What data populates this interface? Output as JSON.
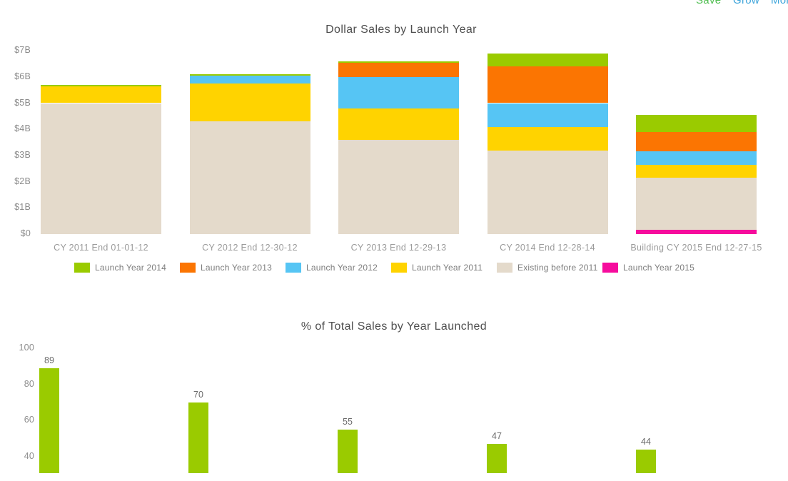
{
  "header": {
    "links": [
      {
        "label": "Save",
        "color": "#4fbe50"
      },
      {
        "label": "Grow",
        "color": "#3fa5db"
      },
      {
        "label": "More",
        "color": "#3fa5db"
      }
    ]
  },
  "colors": {
    "green_2014": "#9acb00",
    "orange_2013": "#fb7502",
    "blue_2012": "#56c5f4",
    "yellow_2011": "#ffd300",
    "tan_existing": "#e4dacb",
    "magenta_2015": "#f60c9d"
  },
  "chart_data": [
    {
      "type": "bar",
      "subtype": "stacked",
      "title": "Dollar Sales by Launch Year",
      "unit": "billions USD",
      "ylim": [
        0,
        7.3
      ],
      "grid": false,
      "yticks": [
        {
          "label": "$7B",
          "value": 7
        },
        {
          "label": "$6B",
          "value": 6
        },
        {
          "label": "$5B",
          "value": 5
        },
        {
          "label": "$4B",
          "value": 4
        },
        {
          "label": "$3B",
          "value": 3
        },
        {
          "label": "$2B",
          "value": 2
        },
        {
          "label": "$1B",
          "value": 1
        },
        {
          "label": "$0",
          "value": 0
        }
      ],
      "categories": [
        "CY 2011 End 01-01-12",
        "CY 2012 End 12-30-12",
        "CY 2013 End 12-29-13",
        "CY 2014 End 12-28-14",
        "Building CY 2015 End 12-27-15"
      ],
      "series": [
        {
          "name": "Launch Year 2015",
          "color": "#f60c9d",
          "values": [
            0,
            0,
            0,
            0,
            0.15
          ]
        },
        {
          "name": "Existing before 2011",
          "color": "#e4dacb",
          "values": [
            5.0,
            4.3,
            3.6,
            3.2,
            2.0
          ]
        },
        {
          "name": "Launch Year 2011",
          "color": "#ffd300",
          "values": [
            0.65,
            1.45,
            1.2,
            0.9,
            0.5
          ]
        },
        {
          "name": "Launch Year 2012",
          "color": "#56c5f4",
          "values": [
            0,
            0.3,
            1.2,
            0.9,
            0.5
          ]
        },
        {
          "name": "Launch Year 2013",
          "color": "#fb7502",
          "values": [
            0,
            0,
            0.55,
            1.4,
            0.75
          ]
        },
        {
          "name": "Launch Year 2014",
          "color": "#9acb00",
          "values": [
            0.04,
            0.06,
            0.05,
            0.5,
            0.65
          ]
        }
      ],
      "legend_position": "bottom",
      "legend": [
        {
          "label": "Launch Year 2014",
          "color": "#9acb00"
        },
        {
          "label": "Launch Year 2013",
          "color": "#fb7502"
        },
        {
          "label": "Launch Year 2012",
          "color": "#56c5f4"
        },
        {
          "label": "Launch Year 2011",
          "color": "#ffd300"
        },
        {
          "label": "Existing before 2011",
          "color": "#e4dacb"
        },
        {
          "label": "Launch Year 2015",
          "color": "#f60c9d"
        }
      ]
    },
    {
      "type": "bar",
      "title": "% of Total Sales by Year Launched",
      "values": [
        89,
        70,
        55,
        47,
        44
      ],
      "bar_color": "#9acb00",
      "grid": false,
      "yticks": [
        100,
        80,
        60,
        40
      ],
      "ylim_visible": [
        30,
        100
      ],
      "note": "bars clipped at bottom edge of view",
      "value_labels": true
    }
  ]
}
